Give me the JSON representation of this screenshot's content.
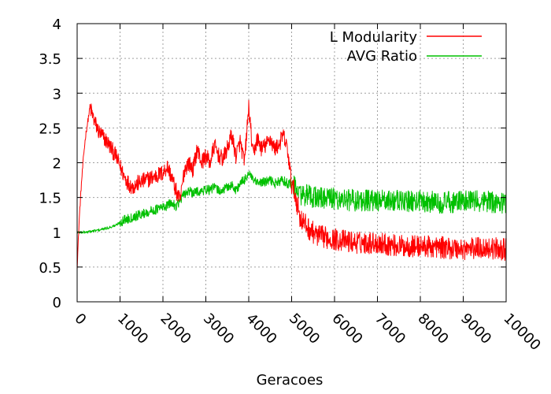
{
  "chart_data": {
    "type": "line",
    "title": "",
    "xlabel": "Geracoes",
    "ylabel": "",
    "xlim": [
      0,
      10000
    ],
    "ylim": [
      0,
      4
    ],
    "x_ticks": [
      "0",
      "1000",
      "2000",
      "3000",
      "4000",
      "5000",
      "6000",
      "7000",
      "8000",
      "9000",
      "10000"
    ],
    "y_ticks": [
      "0",
      "0.5",
      "1",
      "1.5",
      "2",
      "2.5",
      "3",
      "3.5",
      "4"
    ],
    "grid": true,
    "legend_position": "top-right",
    "x": [
      0,
      50,
      100,
      150,
      200,
      300,
      400,
      500,
      700,
      900,
      1000,
      1100,
      1200,
      1300,
      1400,
      1600,
      1800,
      2000,
      2100,
      2200,
      2300,
      2400,
      2500,
      2600,
      2700,
      2800,
      2900,
      3000,
      3100,
      3200,
      3300,
      3400,
      3500,
      3600,
      3700,
      3800,
      3900,
      4000,
      4100,
      4200,
      4300,
      4400,
      4500,
      4600,
      4700,
      4800,
      4900,
      5000,
      5100,
      5200,
      5400,
      5600,
      6000,
      6500,
      7000,
      7500,
      8000,
      8500,
      9000,
      9500,
      10000
    ],
    "series": [
      {
        "name": "L Modularity",
        "color": "#ff0000",
        "values": [
          0.5,
          1.2,
          1.7,
          2.1,
          2.4,
          2.8,
          2.6,
          2.45,
          2.3,
          2.1,
          1.95,
          1.8,
          1.7,
          1.65,
          1.7,
          1.75,
          1.8,
          1.85,
          1.95,
          1.8,
          1.6,
          1.45,
          1.9,
          2.0,
          1.9,
          2.2,
          2.0,
          2.1,
          2.0,
          2.25,
          2.1,
          2.05,
          2.2,
          2.4,
          2.1,
          2.3,
          2.0,
          2.8,
          2.1,
          2.35,
          2.2,
          2.25,
          2.35,
          2.2,
          2.25,
          2.4,
          2.2,
          1.7,
          1.5,
          1.2,
          1.05,
          0.95,
          0.9,
          0.85,
          0.85,
          0.8,
          0.8,
          0.78,
          0.76,
          0.78,
          0.75
        ]
      },
      {
        "name": "AVG Ratio",
        "color": "#00c000",
        "values": [
          1.0,
          1.0,
          1.0,
          1.0,
          1.0,
          1.01,
          1.02,
          1.03,
          1.06,
          1.1,
          1.14,
          1.18,
          1.2,
          1.22,
          1.24,
          1.28,
          1.32,
          1.36,
          1.38,
          1.42,
          1.38,
          1.45,
          1.55,
          1.6,
          1.55,
          1.6,
          1.58,
          1.62,
          1.6,
          1.65,
          1.6,
          1.6,
          1.65,
          1.68,
          1.6,
          1.7,
          1.75,
          1.85,
          1.75,
          1.7,
          1.72,
          1.72,
          1.75,
          1.7,
          1.72,
          1.75,
          1.7,
          1.7,
          1.62,
          1.55,
          1.52,
          1.5,
          1.48,
          1.46,
          1.45,
          1.45,
          1.45,
          1.43,
          1.44,
          1.45,
          1.42
        ]
      }
    ]
  }
}
